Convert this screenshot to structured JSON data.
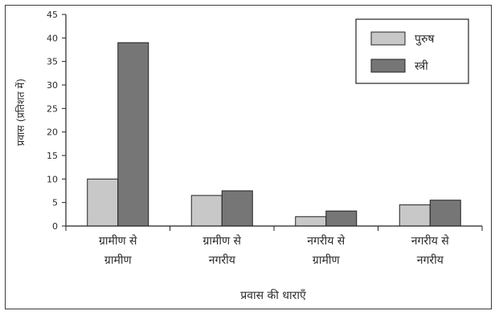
{
  "chart_data": {
    "type": "bar",
    "title": "",
    "xlabel": "प्रवास की धाराएँ",
    "ylabel": "प्रवास (प्रतिशत में)",
    "ylim": [
      0,
      45
    ],
    "ytick_step": 5,
    "categories": [
      [
        "ग्रामीण से",
        "ग्रामीण"
      ],
      [
        "ग्रामीण से",
        "नगरीय"
      ],
      [
        "नगरीय से",
        "ग्रामीण"
      ],
      [
        "नगरीय से",
        "नगरीय"
      ]
    ],
    "series": [
      {
        "name": "पुरुष",
        "color": "#c8c8c8",
        "values": [
          10,
          6.5,
          2,
          4.5
        ]
      },
      {
        "name": "स्त्री",
        "color": "#767676",
        "values": [
          39,
          7.5,
          3.2,
          5.5
        ]
      }
    ],
    "grid": false,
    "legend_position": "top-right"
  }
}
